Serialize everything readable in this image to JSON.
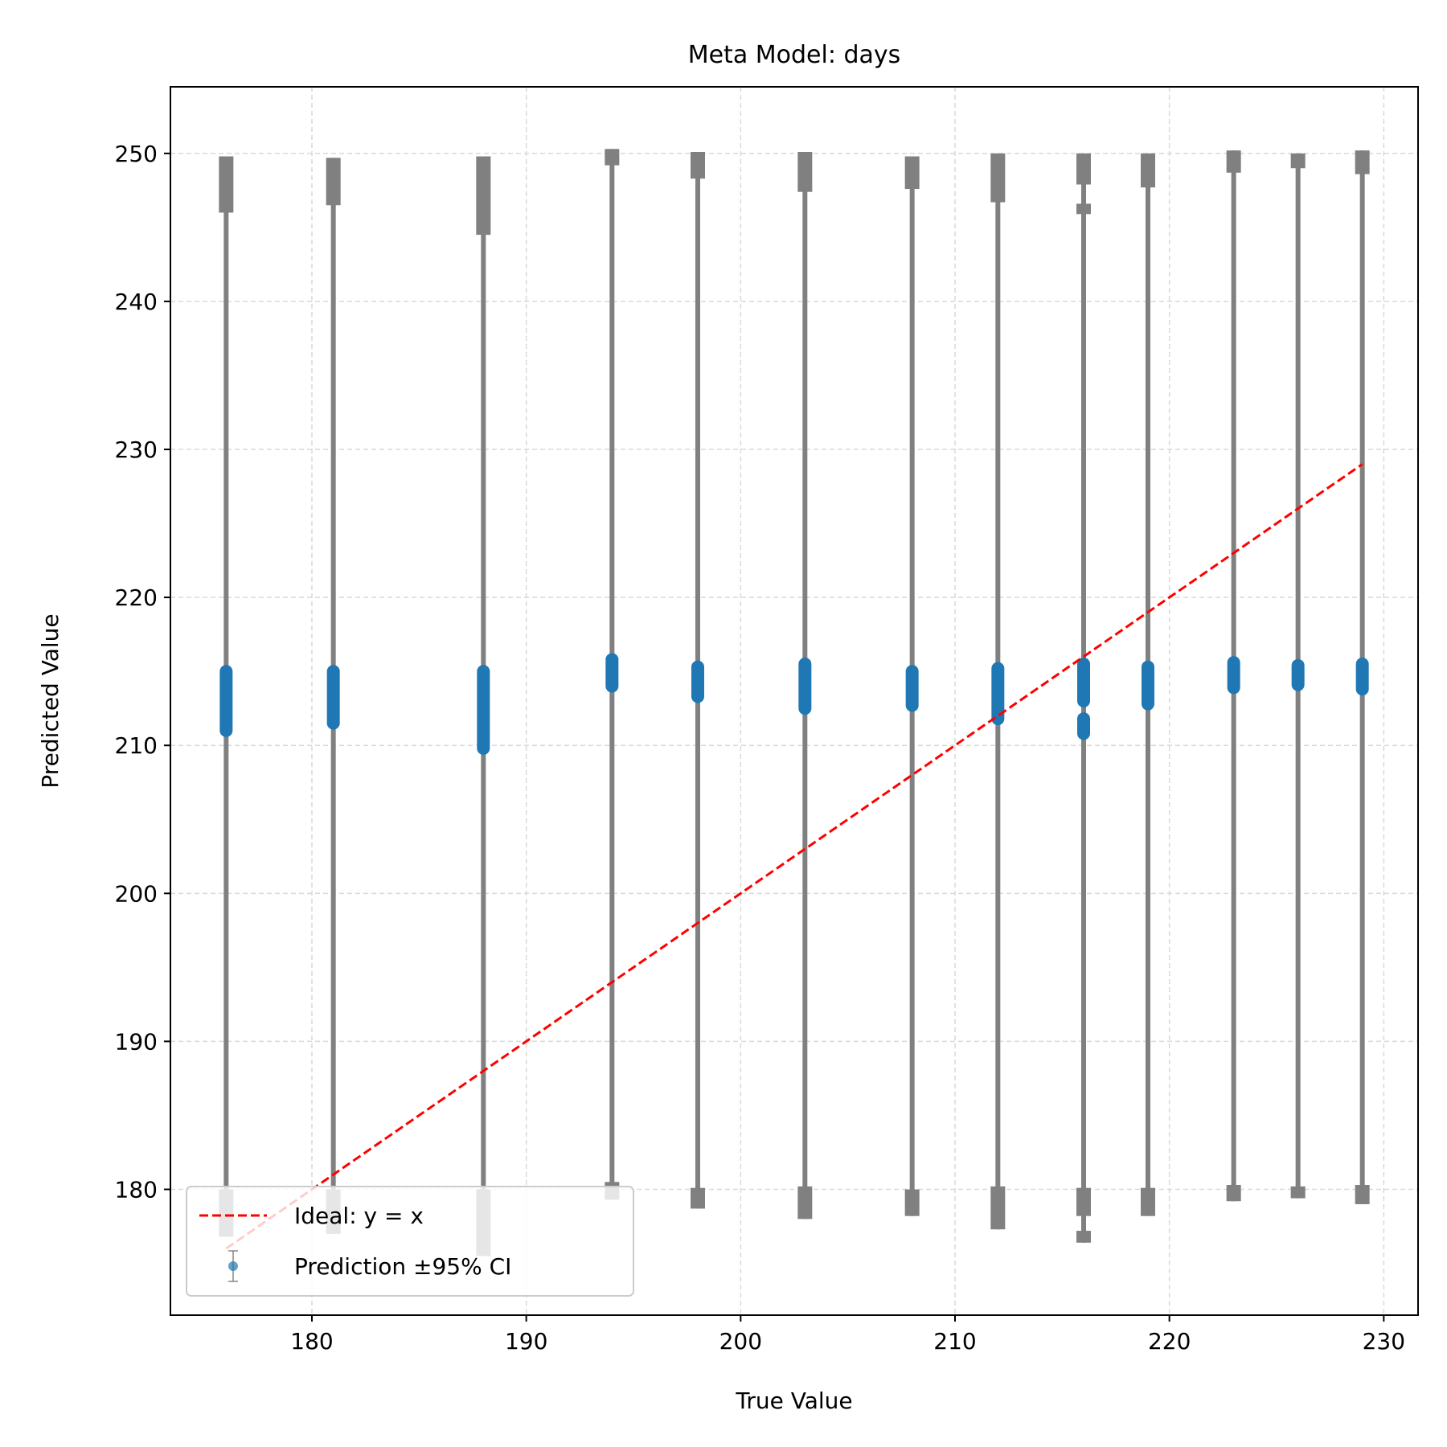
{
  "chart_data": {
    "type": "scatter",
    "title": "Meta Model: days",
    "xlabel": "True Value",
    "ylabel": "Predicted Value",
    "xlim": [
      173.4,
      231.6
    ],
    "ylim": [
      171.5,
      254.5
    ],
    "xticks": [
      180,
      190,
      200,
      210,
      220,
      230
    ],
    "yticks": [
      180,
      190,
      200,
      210,
      220,
      230,
      240,
      250
    ],
    "grid": true,
    "legend_position": "lower-left",
    "colors": {
      "points": "#1f77b4",
      "errorbars": "#808080",
      "ideal_line": "#ff0000",
      "grid": "#d9d9d9"
    },
    "series": [
      {
        "name": "Prediction ±95% CI",
        "points": [
          {
            "x": 176,
            "y_min": 211.0,
            "y_max": 215.0,
            "ci_low_min": 176.8,
            "ci_low_max": 180.0,
            "ci_high_min": 246.0,
            "ci_high_max": 249.8
          },
          {
            "x": 181,
            "y_min": 211.5,
            "y_max": 215.0,
            "ci_low_min": 177.0,
            "ci_low_max": 180.0,
            "ci_high_min": 246.5,
            "ci_high_max": 249.7
          },
          {
            "x": 188,
            "y_min": 209.8,
            "y_max": 215.0,
            "ci_low_min": 175.5,
            "ci_low_max": 180.0,
            "ci_high_min": 244.5,
            "ci_high_max": 249.8
          },
          {
            "x": 194,
            "y_min": 214.0,
            "y_max": 215.8,
            "ci_low_min": 179.3,
            "ci_low_max": 180.5,
            "ci_high_min": 249.2,
            "ci_high_max": 250.3
          },
          {
            "x": 198,
            "y_min": 213.3,
            "y_max": 215.3,
            "ci_low_min": 178.7,
            "ci_low_max": 180.1,
            "ci_high_min": 248.3,
            "ci_high_max": 250.1
          },
          {
            "x": 203,
            "y_min": 212.5,
            "y_max": 215.5,
            "ci_low_min": 178.0,
            "ci_low_max": 180.2,
            "ci_high_min": 247.4,
            "ci_high_max": 250.1
          },
          {
            "x": 208,
            "y_min": 212.7,
            "y_max": 215.0,
            "ci_low_min": 178.2,
            "ci_low_max": 180.0,
            "ci_high_min": 247.6,
            "ci_high_max": 249.8
          },
          {
            "x": 212,
            "y_min": 211.8,
            "y_max": 215.2,
            "ci_low_min": 177.3,
            "ci_low_max": 180.2,
            "ci_high_min": 246.7,
            "ci_high_max": 250.0
          },
          {
            "x": 216,
            "y_min": 213.0,
            "y_max": 215.5,
            "ci_low_min": 178.2,
            "ci_low_max": 180.1,
            "ci_high_min": 247.9,
            "ci_high_max": 250.0
          },
          {
            "x": 216,
            "y_min": 210.8,
            "y_max": 211.8,
            "ci_low_min": 176.4,
            "ci_low_max": 177.2,
            "ci_high_min": 245.9,
            "ci_high_max": 246.6
          },
          {
            "x": 219,
            "y_min": 212.8,
            "y_max": 215.3,
            "ci_low_min": 178.2,
            "ci_low_max": 180.1,
            "ci_high_min": 247.7,
            "ci_high_max": 250.0
          },
          {
            "x": 223,
            "y_min": 213.9,
            "y_max": 215.6,
            "ci_low_min": 179.2,
            "ci_low_max": 180.3,
            "ci_high_min": 248.7,
            "ci_high_max": 250.2
          },
          {
            "x": 226,
            "y_min": 214.1,
            "y_max": 215.4,
            "ci_low_min": 179.4,
            "ci_low_max": 180.2,
            "ci_high_min": 249.0,
            "ci_high_max": 250.0
          },
          {
            "x": 229,
            "y_min": 213.8,
            "y_max": 215.5,
            "ci_low_min": 179.0,
            "ci_low_max": 180.3,
            "ci_high_min": 248.6,
            "ci_high_max": 250.2
          }
        ]
      },
      {
        "name": "Ideal: y = x",
        "type": "line",
        "style": "dashed",
        "x": [
          176,
          229
        ],
        "y": [
          176,
          229
        ]
      }
    ],
    "legend": [
      {
        "label": "Ideal: y = x"
      },
      {
        "label": "Prediction ±95% CI"
      }
    ]
  }
}
